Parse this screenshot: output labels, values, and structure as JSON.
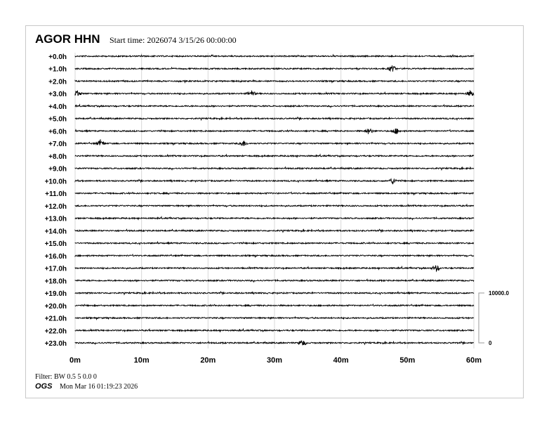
{
  "header": {
    "station": "AGOR HHN",
    "start_time": "Start time: 2026074  3/15/26 00:00:00"
  },
  "footer": {
    "filter": "Filter: BW 0.5 5 0.0 0",
    "agency": "OGS",
    "printed": "Mon Mar 16 01:19:23 2026"
  },
  "chart_data": {
    "type": "line",
    "title": "AGOR HHN",
    "row_labels": [
      "+0.0h",
      "+1.0h",
      "+2.0h",
      "+3.0h",
      "+4.0h",
      "+5.0h",
      "+6.0h",
      "+7.0h",
      "+8.0h",
      "+9.0h",
      "+10.0h",
      "+11.0h",
      "+12.0h",
      "+13.0h",
      "+14.0h",
      "+15.0h",
      "+16.0h",
      "+17.0h",
      "+18.0h",
      "+19.0h",
      "+20.0h",
      "+21.0h",
      "+22.0h",
      "+23.0h"
    ],
    "x_ticks": [
      "0m",
      "10m",
      "20m",
      "30m",
      "40m",
      "50m",
      "60m"
    ],
    "xlim": [
      0,
      60
    ],
    "grid": true,
    "scale_bar": {
      "top": "10000.0",
      "bottom": "0"
    },
    "trace_color": "#000000",
    "grid_color": "#d8d8d8",
    "events": [
      {
        "hour": 1,
        "minute": 47.7
      },
      {
        "hour": 3,
        "minute": 0.3
      },
      {
        "hour": 3,
        "minute": 26.5
      },
      {
        "hour": 3,
        "minute": 59.5
      },
      {
        "hour": 6,
        "minute": 44.2
      },
      {
        "hour": 6,
        "minute": 48.3
      },
      {
        "hour": 7,
        "minute": 3.8
      },
      {
        "hour": 7,
        "minute": 25.3
      },
      {
        "hour": 10,
        "minute": 47.8
      },
      {
        "hour": 17,
        "minute": 54.3
      },
      {
        "hour": 23,
        "minute": 34.2
      }
    ]
  }
}
